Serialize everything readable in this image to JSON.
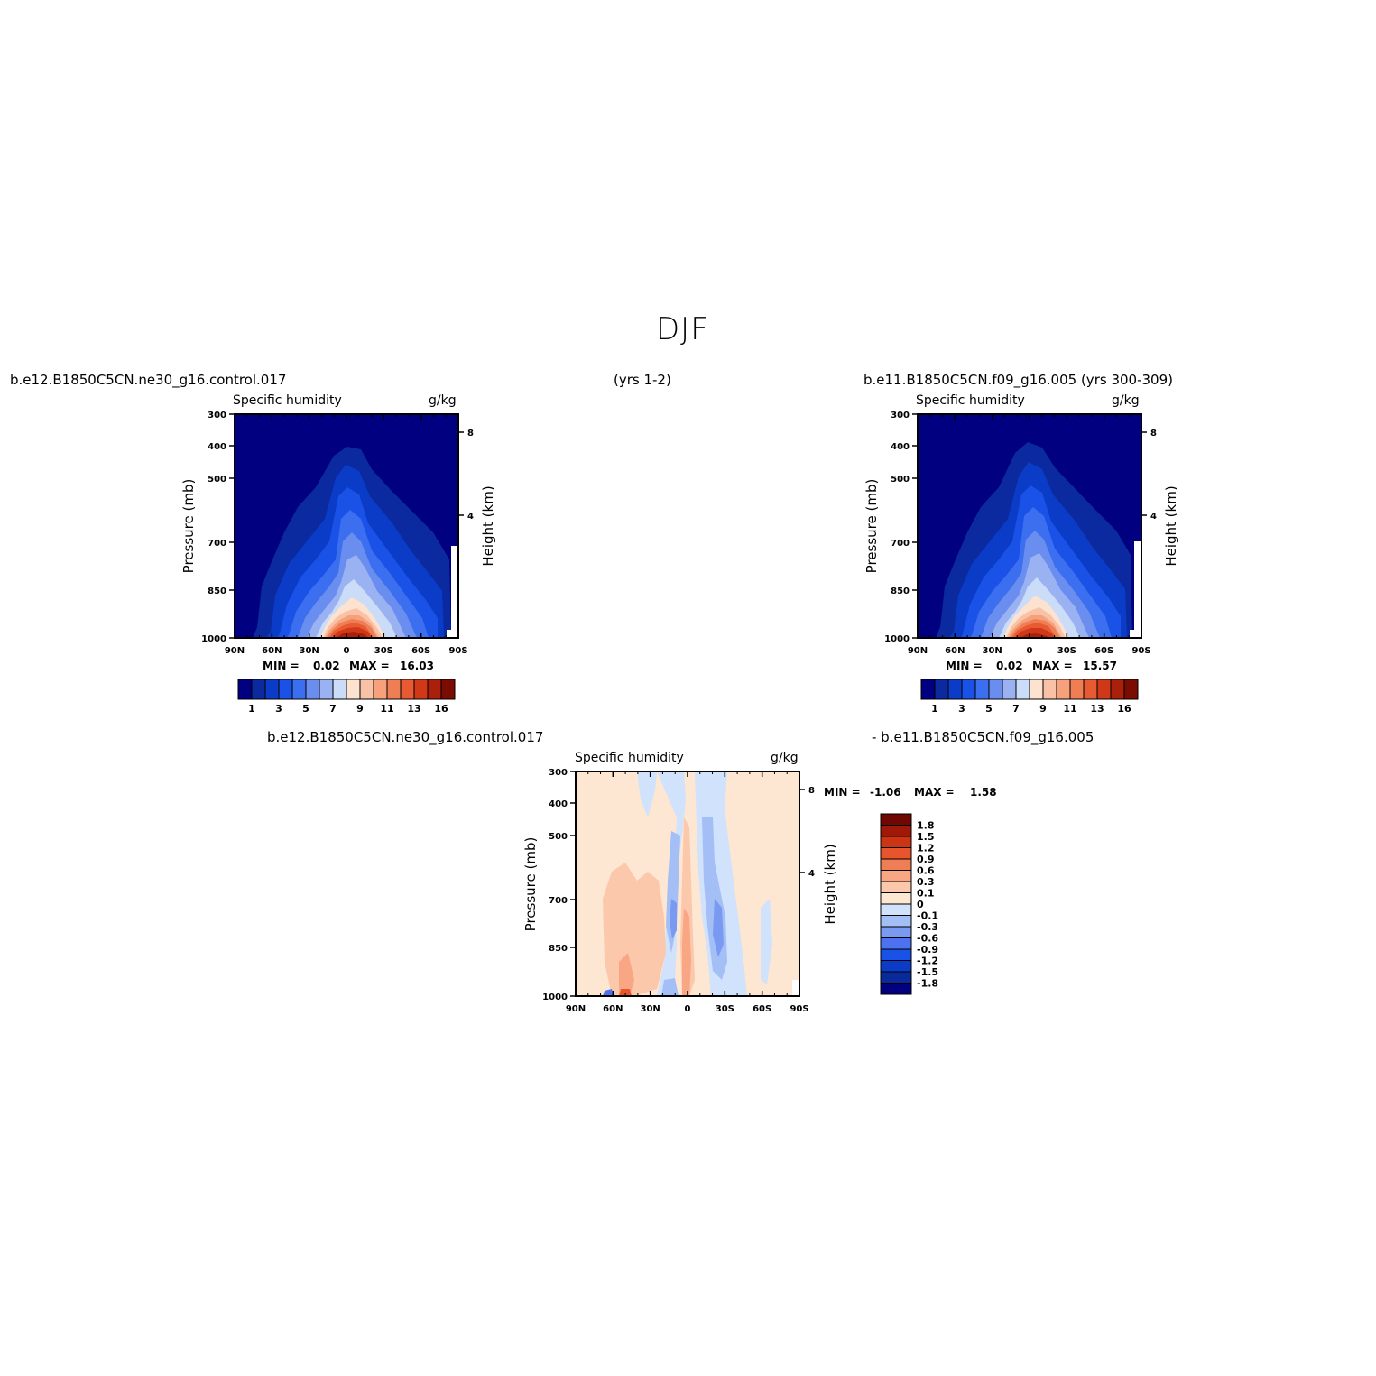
{
  "title": "DJF",
  "headers": {
    "left_case": "b.e12.B1850C5CN.ne30_g16.control.017",
    "left_years": "(yrs 1-2)",
    "right_case": "b.e11.B1850C5CN.f09_g16.005 (yrs 300-309)",
    "diff_left": "b.e12.B1850C5CN.ne30_g16.control.017",
    "diff_right": "- b.e11.B1850C5CN.f09_g16.005"
  },
  "colors": {
    "main_scale": [
      "#000080",
      "#0b2aa0",
      "#0a3cc8",
      "#1a52e8",
      "#3c6ef0",
      "#6a8ef0",
      "#9ab2f2",
      "#cadcf8",
      "#fde2d0",
      "#f9c2a6",
      "#f6a07c",
      "#f07e55",
      "#e85a32",
      "#d03818",
      "#aa200a",
      "#7a0c02"
    ],
    "diff_scale": [
      "#000080",
      "#0a2a9c",
      "#0a3cc8",
      "#1a52e8",
      "#4c72f0",
      "#7a9af2",
      "#a4bef6",
      "#d0e2fc",
      "#fde6d2",
      "#fcc8ac",
      "#f8a684",
      "#f07e55",
      "#e8542c",
      "#cc3414",
      "#a01808",
      "#6e0800"
    ]
  },
  "chart_data": [
    {
      "id": "control",
      "type": "contour",
      "title": "Specific humidity",
      "units": "g/kg",
      "ylabel": "Pressure (mb)",
      "ylabel_right": "Height (km)",
      "x_ticks": [
        "90N",
        "60N",
        "30N",
        "0",
        "30S",
        "60S",
        "90S"
      ],
      "y_ticks": [
        300,
        400,
        500,
        700,
        850,
        1000
      ],
      "y2_ticks": [
        8,
        4
      ],
      "min_label": "MIN =",
      "min_value": "0.02",
      "max_label": "MAX =",
      "max_value": "16.03",
      "colorbar_labels": [
        "1",
        "3",
        "5",
        "7",
        "9",
        "11",
        "13",
        "16"
      ],
      "humidity_peak": 16.03
    },
    {
      "id": "model",
      "type": "contour",
      "title": "Specific humidity",
      "units": "g/kg",
      "ylabel": "Pressure (mb)",
      "ylabel_right": "Height (km)",
      "x_ticks": [
        "90N",
        "60N",
        "30N",
        "0",
        "30S",
        "60S",
        "90S"
      ],
      "y_ticks": [
        300,
        400,
        500,
        700,
        850,
        1000
      ],
      "y2_ticks": [
        8,
        4
      ],
      "min_label": "MIN =",
      "min_value": "0.02",
      "max_label": "MAX =",
      "max_value": "15.57",
      "colorbar_labels": [
        "1",
        "3",
        "5",
        "7",
        "9",
        "11",
        "13",
        "16"
      ],
      "humidity_peak": 15.57
    },
    {
      "id": "difference",
      "type": "contour",
      "title": "Specific humidity",
      "units": "g/kg",
      "ylabel": "Pressure (mb)",
      "ylabel_right": "Height (km)",
      "x_ticks": [
        "90N",
        "60N",
        "30N",
        "0",
        "30S",
        "60S",
        "90S"
      ],
      "y_ticks": [
        300,
        400,
        500,
        700,
        850,
        1000
      ],
      "y2_ticks": [
        8,
        4
      ],
      "min_label": "MIN =",
      "min_value": "-1.06",
      "max_label": "MAX =",
      "max_value": "1.58",
      "colorbar_labels": [
        "1.8",
        "1.5",
        "1.2",
        "0.9",
        "0.6",
        "0.3",
        "0.1",
        "0",
        "-0.1",
        "-0.3",
        "-0.6",
        "-0.9",
        "-1.2",
        "-1.5",
        "-1.8"
      ]
    }
  ]
}
